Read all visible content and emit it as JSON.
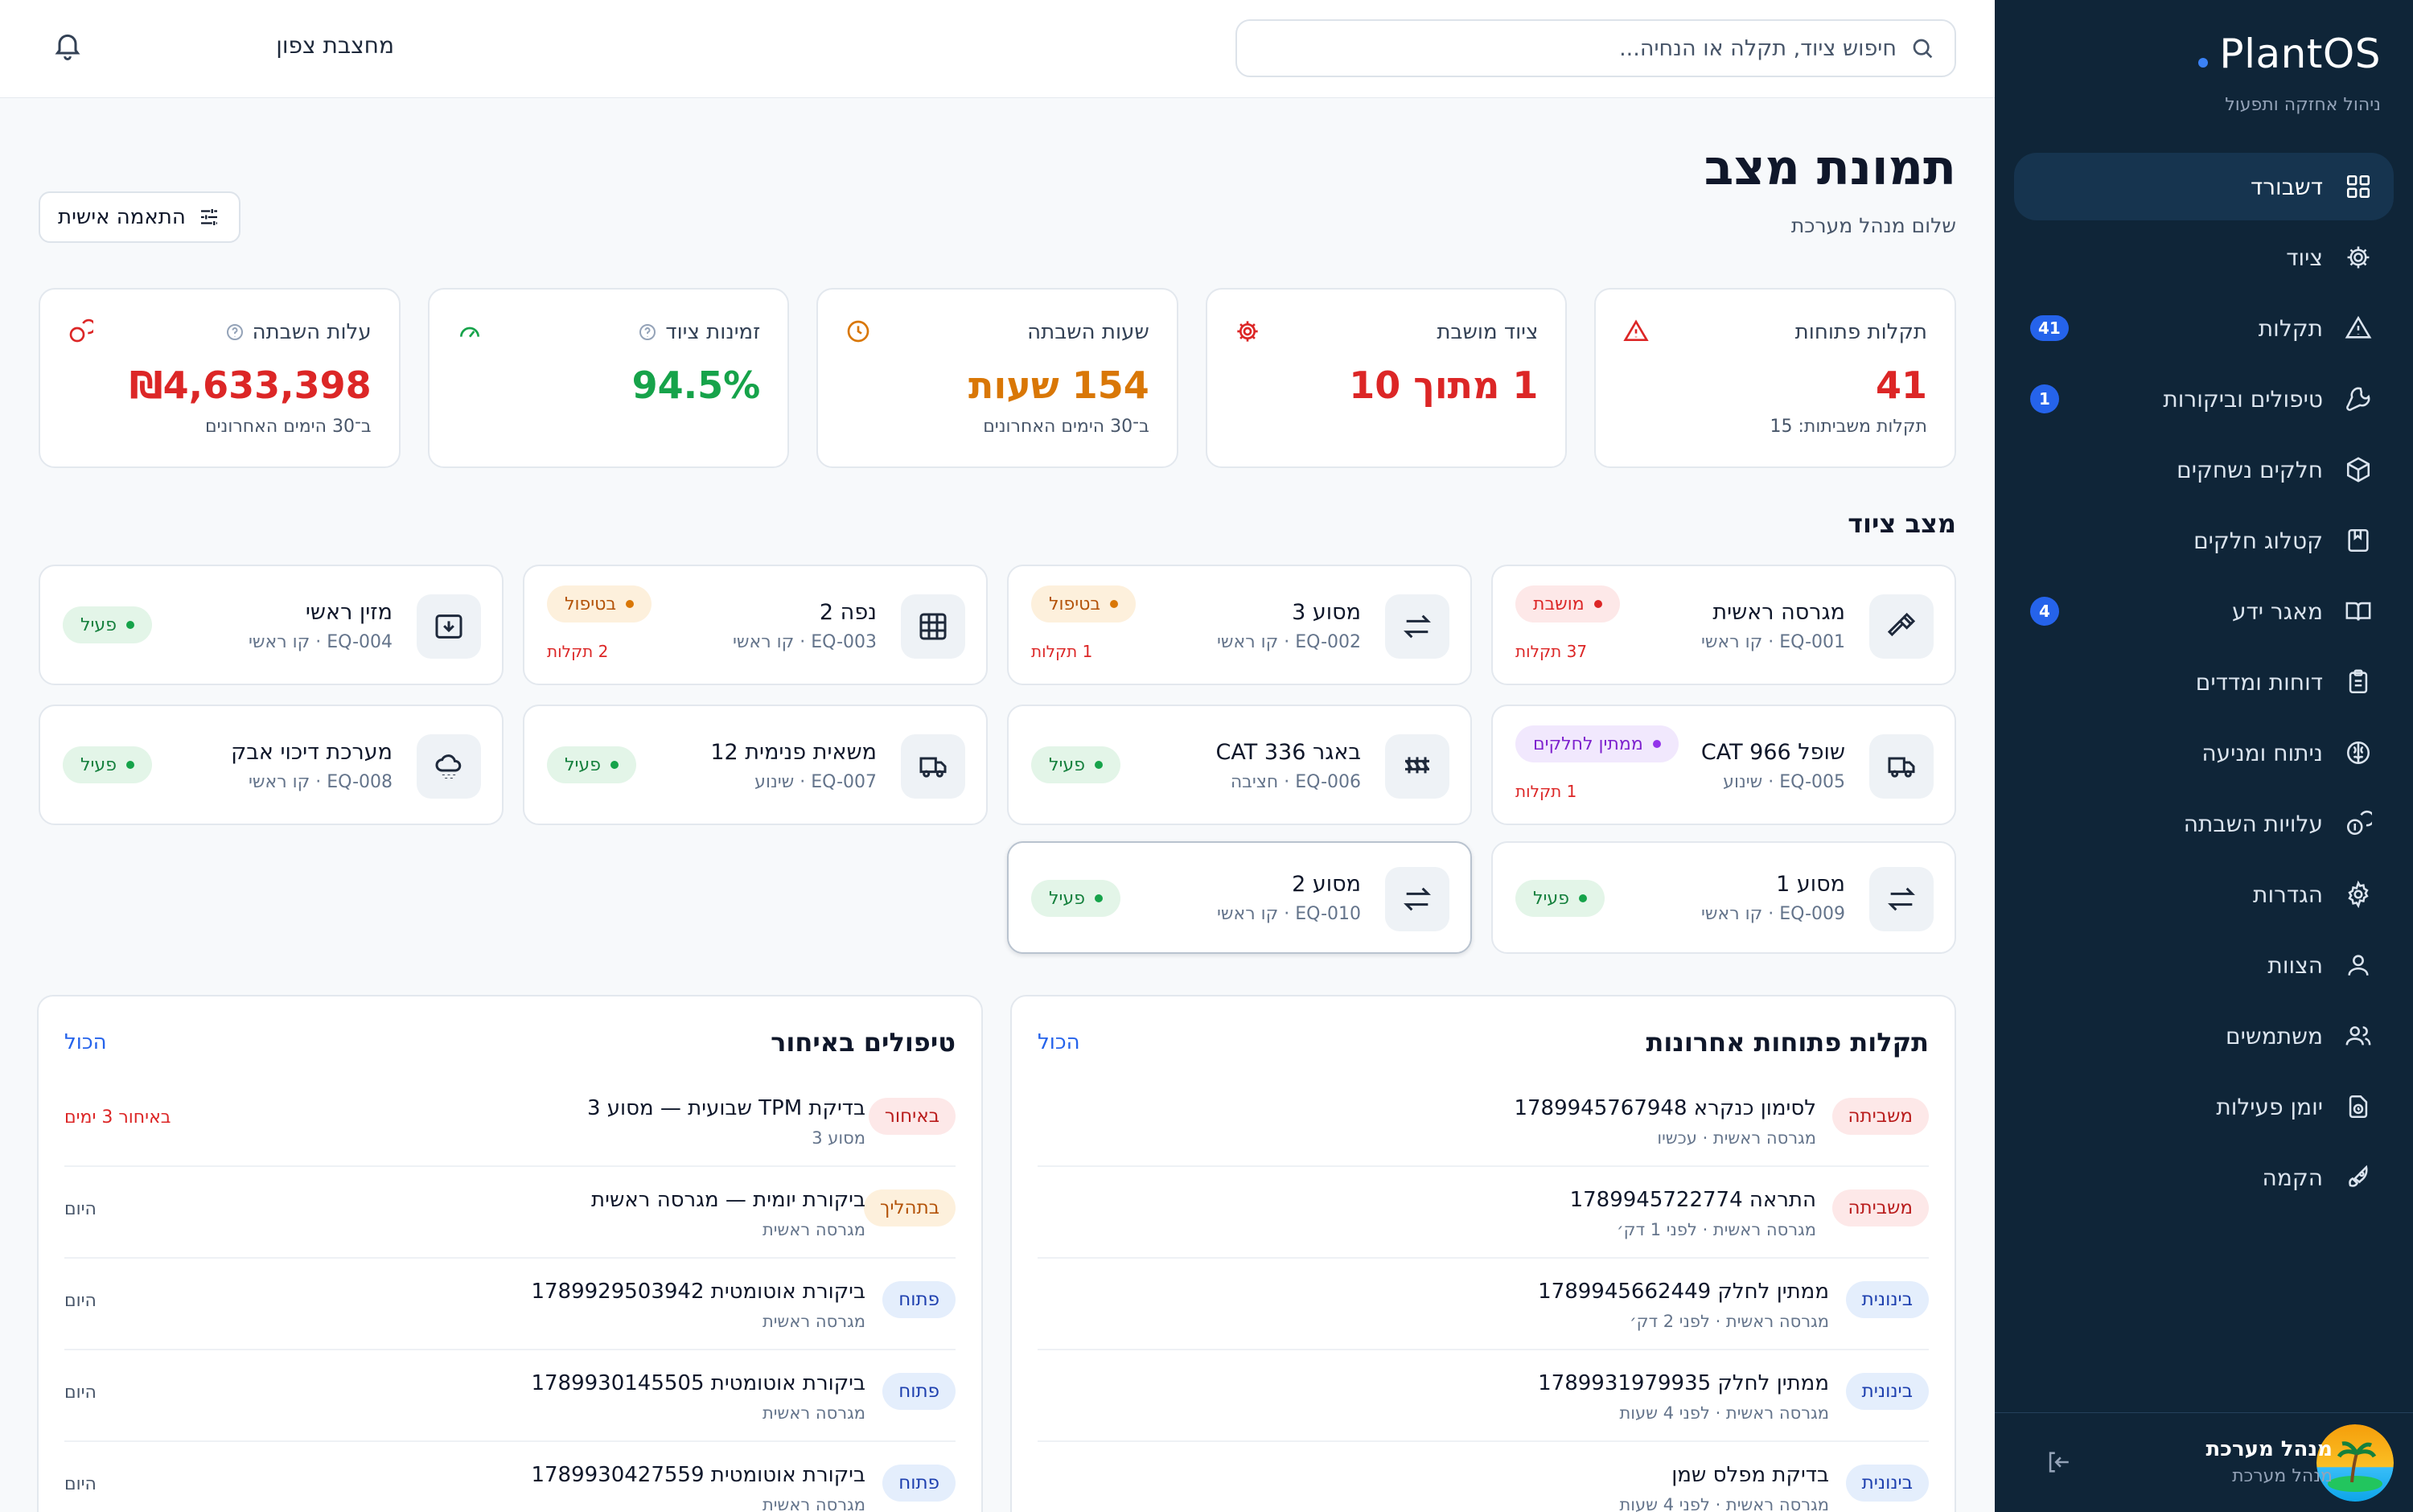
{
  "app": {
    "name": "PlantOS",
    "tagline": "ניהול אחזקה ותפעול"
  },
  "sidebar": {
    "items": [
      {
        "label": "דשבורד",
        "icon": "dashboard-icon",
        "active": true
      },
      {
        "label": "ציוד",
        "icon": "gear-icon"
      },
      {
        "label": "תקלות",
        "icon": "warning-icon",
        "badge": "41"
      },
      {
        "label": "טיפולים וביקורות",
        "icon": "wrench-icon",
        "badge": "1"
      },
      {
        "label": "חלקים נשחקים",
        "icon": "box-icon"
      },
      {
        "label": "קטלוג חלקים",
        "icon": "catalog-icon"
      },
      {
        "label": "מאגר ידע",
        "icon": "book-icon",
        "badge": "4"
      },
      {
        "label": "דוחות ומדדים",
        "icon": "clipboard-icon"
      },
      {
        "label": "ניתוח ומניעה",
        "icon": "brain-icon"
      },
      {
        "label": "עלויות השבתה",
        "icon": "coins-icon"
      },
      {
        "label": "הגדרות",
        "icon": "settings-icon"
      },
      {
        "label": "הצוות",
        "icon": "user-icon"
      },
      {
        "label": "משתמשים",
        "icon": "users-icon"
      },
      {
        "label": "יומן פעילות",
        "icon": "log-icon"
      },
      {
        "label": "הקמה",
        "icon": "rocket-icon"
      }
    ],
    "user": {
      "name": "מנהל מערכת",
      "role": "מנהל מערכת"
    }
  },
  "header": {
    "search_placeholder": "חיפוש ציוד, תקלה או הנחיה...",
    "site": "מחצבת צפון"
  },
  "page": {
    "title": "תמונת מצב",
    "subtitle": "שלום מנהל מערכת",
    "customize_label": "התאמה אישית"
  },
  "kpis": [
    {
      "label": "תקלות פתוחות",
      "value": "41",
      "note": "תקלות משביתות: 15",
      "color": "#dc2626",
      "icon": "warning-icon"
    },
    {
      "label": "ציוד מושבת",
      "value": "1 מתוך 10",
      "note": "",
      "color": "#dc2626",
      "icon": "gear-icon"
    },
    {
      "label": "שעות השבתה",
      "value": "154 שעות",
      "note": "ב־30 הימים האחרונים",
      "color": "#d97706",
      "icon": "clock-icon"
    },
    {
      "label": "זמינות ציוד",
      "value": "94.5%",
      "note": "",
      "color": "#16a34a",
      "icon": "gauge-icon"
    },
    {
      "label": "עלות השבתה",
      "value": "₪4,633,398",
      "note": "ב־30 הימים האחרונים",
      "color": "#dc2626",
      "icon": "coins-icon"
    }
  ],
  "equipment_title": "מצב ציוד",
  "equipment": [
    {
      "name": "מגרסה ראשית",
      "sub": "EQ-001 · קו ראשי",
      "status": "מושבת",
      "status_color": "#dc2626",
      "status_bg": "#fde8e8",
      "faults": "37 תקלות",
      "icon": "hammer-icon"
    },
    {
      "name": "מסוע 3",
      "sub": "EQ-002 · קו ראשי",
      "status": "בטיפול",
      "status_color": "#b45309",
      "status_bg": "#fdf0dc",
      "faults": "1 תקלות",
      "icon": "arrows-icon"
    },
    {
      "name": "נפה 2",
      "sub": "EQ-003 · קו ראשי",
      "status": "בטיפול",
      "status_color": "#b45309",
      "status_bg": "#fdf0dc",
      "faults": "2 תקלות",
      "icon": "grid-icon"
    },
    {
      "name": "מזין ראשי",
      "sub": "EQ-004 · קו ראשי",
      "status": "פעיל",
      "status_color": "#15803d",
      "status_bg": "#e3f5e8",
      "faults": "",
      "icon": "feeder-icon"
    },
    {
      "name": "שופל CAT 966",
      "sub": "EQ-005 · שינוע",
      "status": "ממתין לחלקים",
      "status_color": "#7e22ce",
      "status_bg": "#f1e8fd",
      "faults": "1 תקלות",
      "icon": "truck-icon"
    },
    {
      "name": "באגר CAT 336",
      "sub": "EQ-006 · חציבה",
      "status": "פעיל",
      "status_color": "#15803d",
      "status_bg": "#e3f5e8",
      "faults": "",
      "icon": "excavator-icon"
    },
    {
      "name": "משאית פנימית 12",
      "sub": "EQ-007 · שינוע",
      "status": "פעיל",
      "status_color": "#15803d",
      "status_bg": "#e3f5e8",
      "faults": "",
      "icon": "truck-icon"
    },
    {
      "name": "מערכת דיכוי אבק",
      "sub": "EQ-008 · קו ראשי",
      "status": "פעיל",
      "status_color": "#15803d",
      "status_bg": "#e3f5e8",
      "faults": "",
      "icon": "cloud-icon"
    },
    {
      "name": "מסוע 1",
      "sub": "EQ-009 · קו ראשי",
      "status": "פעיל",
      "status_color": "#15803d",
      "status_bg": "#e3f5e8",
      "faults": "",
      "icon": "arrows-icon"
    },
    {
      "name": "מסוע 2",
      "sub": "EQ-010 · קו ראשי",
      "status": "פעיל",
      "status_color": "#15803d",
      "status_bg": "#e3f5e8",
      "faults": "",
      "icon": "arrows-icon"
    }
  ],
  "faults_card": {
    "title": "תקלות פתוחות אחרונות",
    "link": "הכול",
    "rows": [
      {
        "badge": "משביתה",
        "title": "לסימון כנקרא 1789945767948",
        "sub": "מגרסה ראשית · עכשיו"
      },
      {
        "badge": "משביתה",
        "title": "התראה 1789945722774",
        "sub": "מגרסה ראשית · לפני 1 דק׳"
      },
      {
        "badge": "בינונית",
        "title": "ממתין לחלק 1789945662449",
        "sub": "מגרסה ראשית · לפני 2 דק׳"
      },
      {
        "badge": "בינונית",
        "title": "ממתין לחלק 1789931979935",
        "sub": "מגרסה ראשית · לפני 4 שעות"
      },
      {
        "badge": "בינונית",
        "title": "בדיקת מפלס שמן",
        "sub": "מגרסה ראשית · לפני 4 שעות"
      }
    ]
  },
  "overdue_card": {
    "title": "טיפולים באיחור",
    "link": "הכול",
    "rows": [
      {
        "badge": "באיחור",
        "title": "בדיקת TPM שבועית — מסוע 3",
        "sub": "מסוע 3",
        "when": "באיחור 3 ימים"
      },
      {
        "badge": "בתהליך",
        "title": "ביקורת יומית — מגרסה ראשית",
        "sub": "מגרסה ראשית",
        "when": "היום"
      },
      {
        "badge": "פתוח",
        "title": "ביקורת אוטומטית 1789929503942",
        "sub": "מגרסה ראשית",
        "when": "היום"
      },
      {
        "badge": "פתוח",
        "title": "ביקורת אוטומטית 1789930145505",
        "sub": "מגרסה ראשית",
        "when": "היום"
      },
      {
        "badge": "פתוח",
        "title": "ביקורת אוטומטית 1789930427559",
        "sub": "מגרסה ראשית",
        "when": "היום"
      }
    ]
  }
}
